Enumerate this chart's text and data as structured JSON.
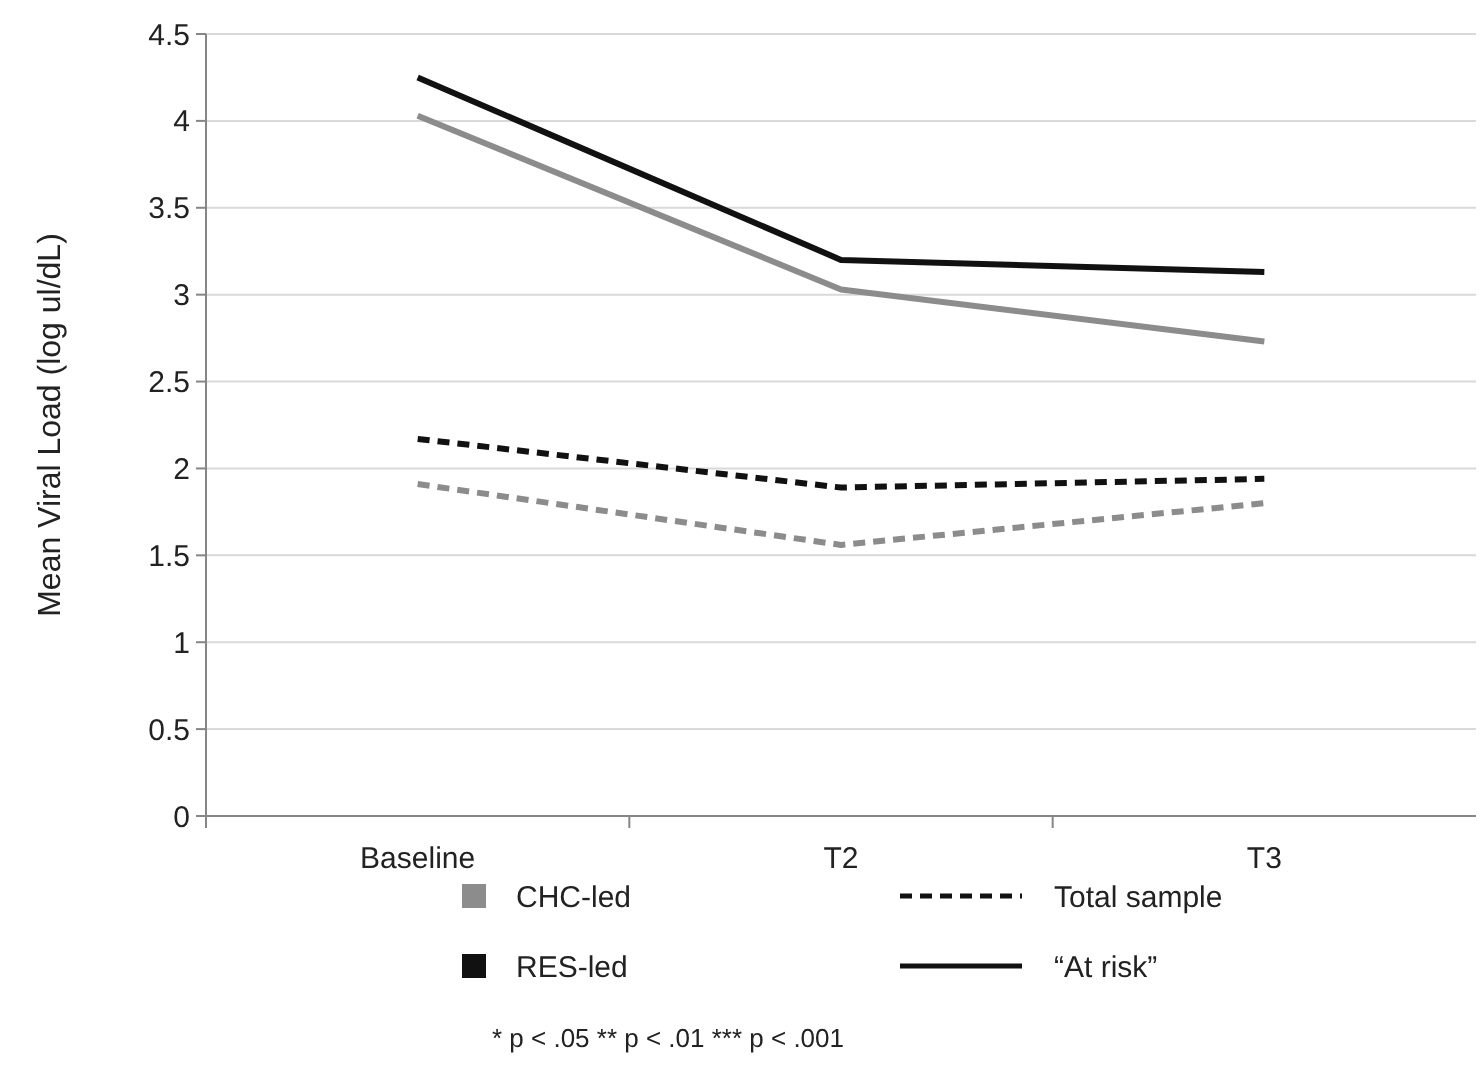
{
  "chart_data": {
    "type": "line",
    "ylabel": "Mean Viral Load (log ul/dL)",
    "categories": [
      "Baseline",
      "T2",
      "T3"
    ],
    "series": [
      {
        "color": "#8c8c8c",
        "line_style": "dashed",
        "values": [
          1.91,
          1.56,
          1.8
        ]
      },
      {
        "color": "#111111",
        "line_style": "dashed",
        "values": [
          2.17,
          1.89,
          1.94
        ]
      },
      {
        "color": "#8c8c8c",
        "line_style": "solid",
        "values": [
          4.03,
          3.03,
          2.73
        ]
      },
      {
        "color": "#111111",
        "line_style": "solid",
        "values": [
          4.25,
          3.2,
          3.13
        ]
      }
    ],
    "ylim": [
      0,
      4.5
    ],
    "yticks": [
      0,
      0.5,
      1,
      1.5,
      2,
      2.5,
      3,
      3.5,
      4,
      4.5
    ],
    "grid": "y",
    "marker": "none",
    "annotations": [
      "CHC-led",
      "RES-led",
      "Total sample",
      "“At risk”",
      "* p < .05  ** p < .01  *** p < .001"
    ]
  }
}
